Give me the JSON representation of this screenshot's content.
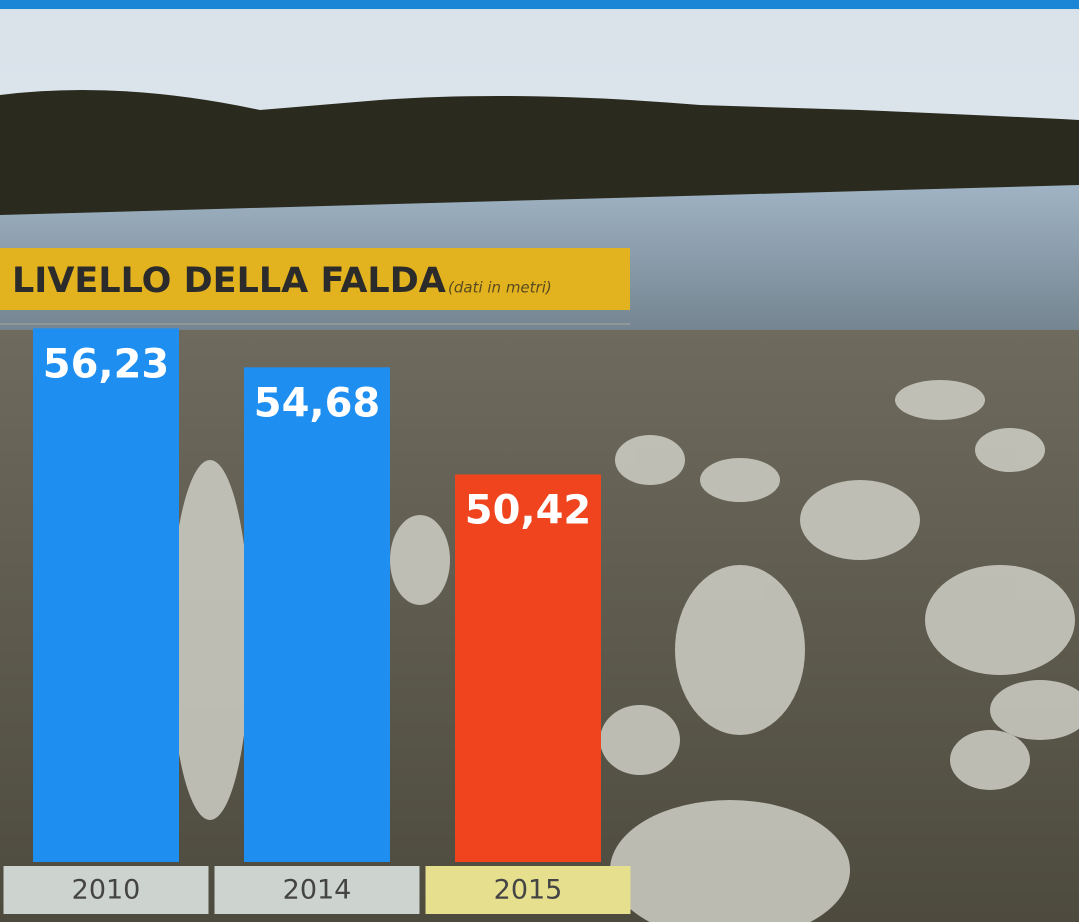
{
  "chart_data": {
    "type": "bar",
    "title": "LIVELLO DELLA FALDA",
    "subtitle": "(dati in metri)",
    "categories": [
      "2010",
      "2014",
      "2015"
    ],
    "values": [
      56.23,
      54.68,
      50.42
    ],
    "value_labels": [
      "56,23",
      "54,68",
      "50,42"
    ],
    "colors": [
      "#1e8ff0",
      "#1e8ff0",
      "#f0441e"
    ],
    "category_label_colors": [
      "#cdd3cf",
      "#cdd3cf",
      "#e6e08e"
    ],
    "ylim": [
      35,
      57
    ]
  }
}
